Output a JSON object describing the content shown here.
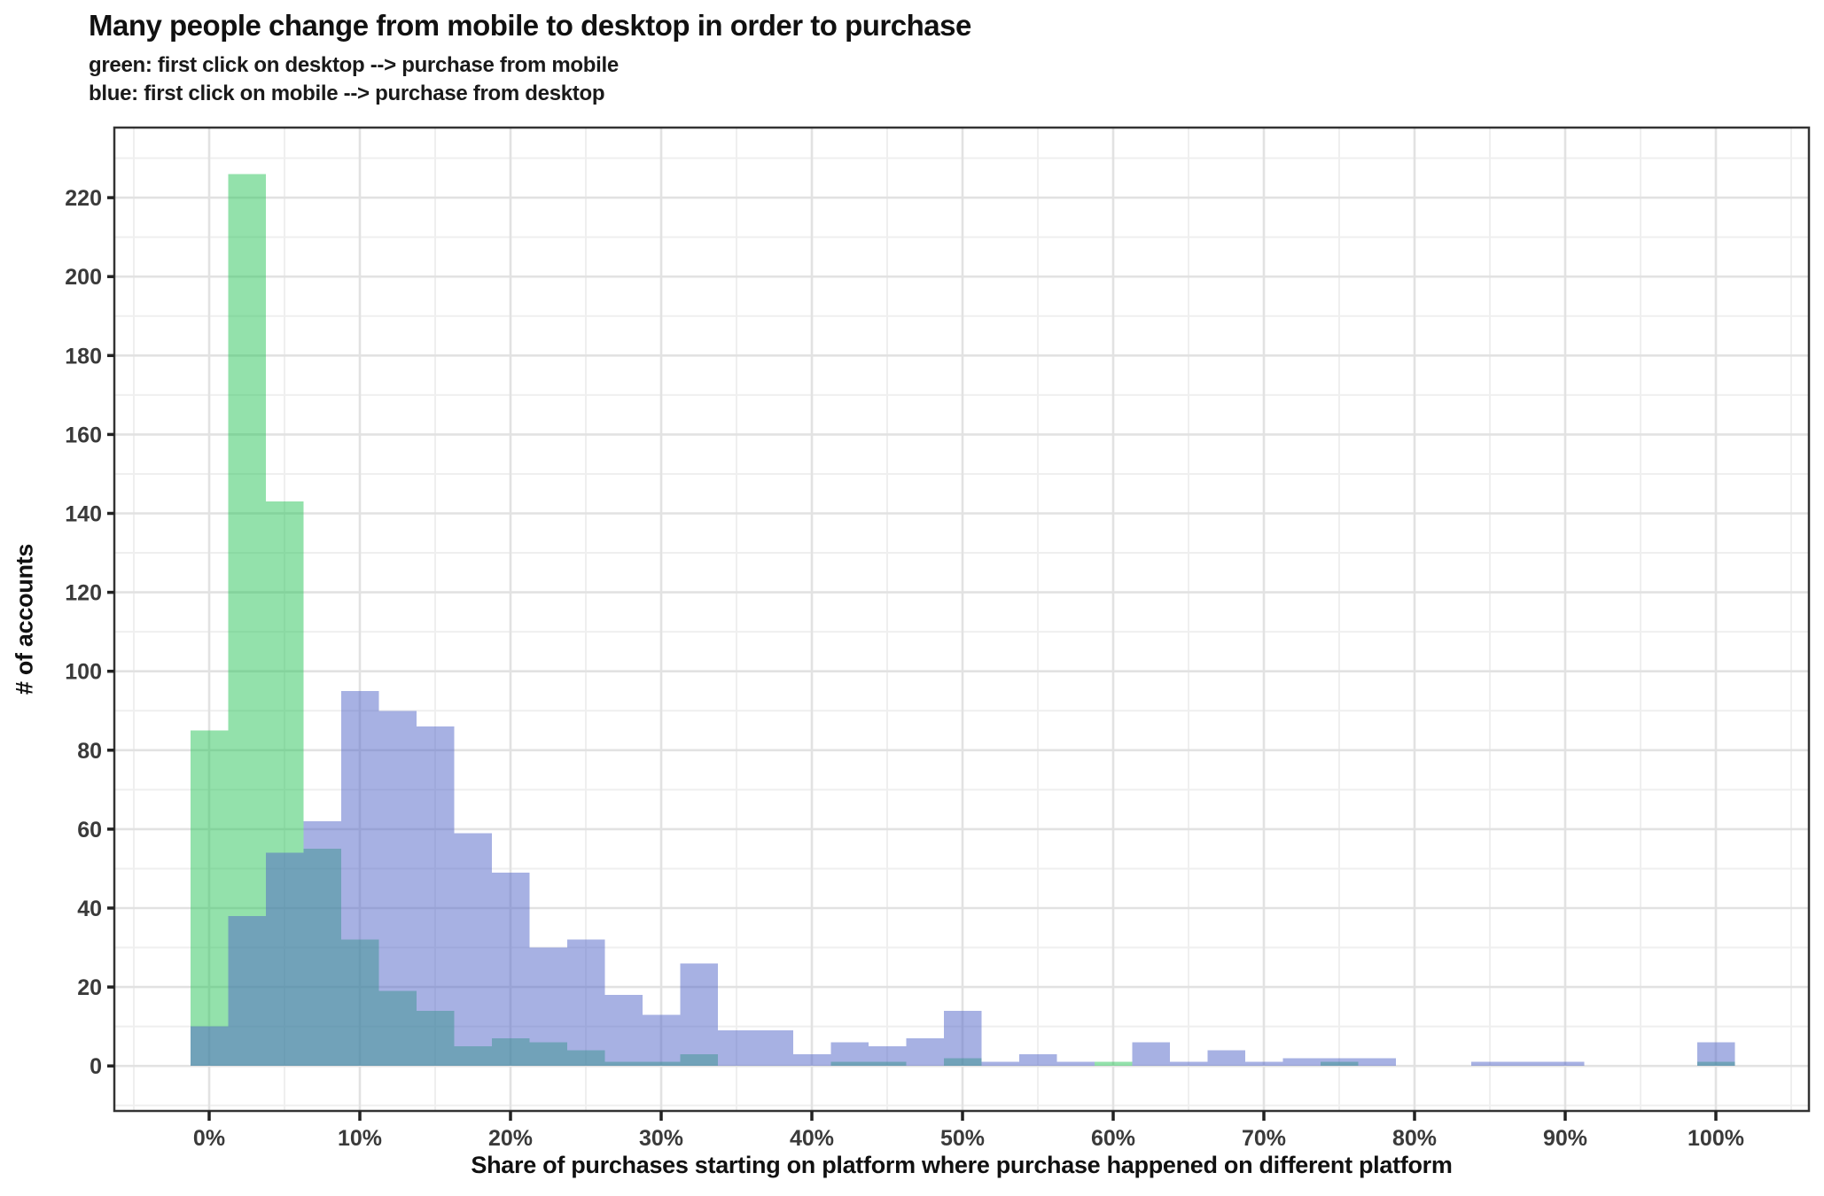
{
  "header": {
    "title": "Many people change from mobile to desktop in order to purchase",
    "subtitle_line1": "green: first click on desktop --> purchase from mobile",
    "subtitle_line2": "blue: first click on mobile --> purchase from desktop"
  },
  "axes": {
    "x_title": "Share of purchases starting on platform where purchase happened on different platform",
    "y_title": "# of accounts",
    "x_tick_values": [
      0,
      10,
      20,
      30,
      40,
      50,
      60,
      70,
      80,
      90,
      100
    ],
    "x_tick_labels": [
      "0%",
      "10%",
      "20%",
      "30%",
      "40%",
      "50%",
      "60%",
      "70%",
      "80%",
      "90%",
      "100%"
    ],
    "y_tick_values": [
      0,
      20,
      40,
      60,
      80,
      100,
      120,
      140,
      160,
      180,
      200,
      220
    ],
    "y_tick_labels": [
      "0",
      "20",
      "40",
      "60",
      "80",
      "100",
      "120",
      "140",
      "160",
      "180",
      "200",
      "220"
    ]
  },
  "chart_data": {
    "type": "bar",
    "subtype": "overlaid-histogram",
    "xlabel": "Share of purchases starting on platform where purchase happened on different platform",
    "ylabel": "# of accounts",
    "title": "Many people change from mobile to desktop in order to purchase",
    "bin_width_pct": 2.5,
    "first_bin_start_pct": -1.25,
    "bin_centers_pct": [
      0,
      2.5,
      5,
      7.5,
      10,
      12.5,
      15,
      17.5,
      20,
      22.5,
      25,
      27.5,
      30,
      32.5,
      35,
      37.5,
      40,
      42.5,
      45,
      47.5,
      50,
      52.5,
      55,
      57.5,
      60,
      62.5,
      65,
      67.5,
      70,
      72.5,
      75,
      77.5,
      80,
      82.5,
      85,
      87.5,
      90,
      92.5,
      95,
      97.5,
      100
    ],
    "series": [
      {
        "name": "green: first click on desktop --> purchase from mobile",
        "solo_color": "#93E1AB",
        "fill": "rgba(40,195,88,0.5)",
        "values": [
          85,
          226,
          143,
          55,
          32,
          19,
          14,
          5,
          7,
          6,
          4,
          1,
          1,
          3,
          0,
          0,
          0,
          1,
          1,
          0,
          2,
          0,
          0,
          0,
          1,
          0,
          0,
          0,
          0,
          0,
          1,
          0,
          0,
          0,
          0,
          0,
          0,
          0,
          0,
          0,
          1
        ]
      },
      {
        "name": "blue: first click on mobile --> purchase from desktop",
        "solo_color": "#A7B1E3",
        "fill": "rgba(80,100,200,0.5)",
        "values": [
          10,
          38,
          54,
          62,
          95,
          90,
          86,
          59,
          49,
          30,
          32,
          18,
          13,
          26,
          9,
          9,
          3,
          6,
          5,
          7,
          14,
          1,
          3,
          1,
          0,
          6,
          1,
          4,
          1,
          2,
          2,
          2,
          0,
          0,
          1,
          1,
          1,
          0,
          0,
          0,
          6
        ]
      }
    ],
    "overlap_color": "#73A2BA",
    "xlim_pct": [
      -6.3,
      106.3
    ],
    "ylim": [
      -11.4,
      237.6
    ],
    "grid": true,
    "x_major_grid_step_pct": 10,
    "x_minor_grid_step_pct": 5,
    "y_major_grid_step": 20,
    "y_minor_grid_step": 10,
    "legend_position": "none (encoded in subtitle)",
    "colors": {
      "grid_major": "#E2E2E2",
      "grid_minor": "#EFEFEF",
      "panel_border": "#333333",
      "tick": "#222222",
      "tick_label": "#3a3a3a",
      "text": "#111111"
    }
  }
}
